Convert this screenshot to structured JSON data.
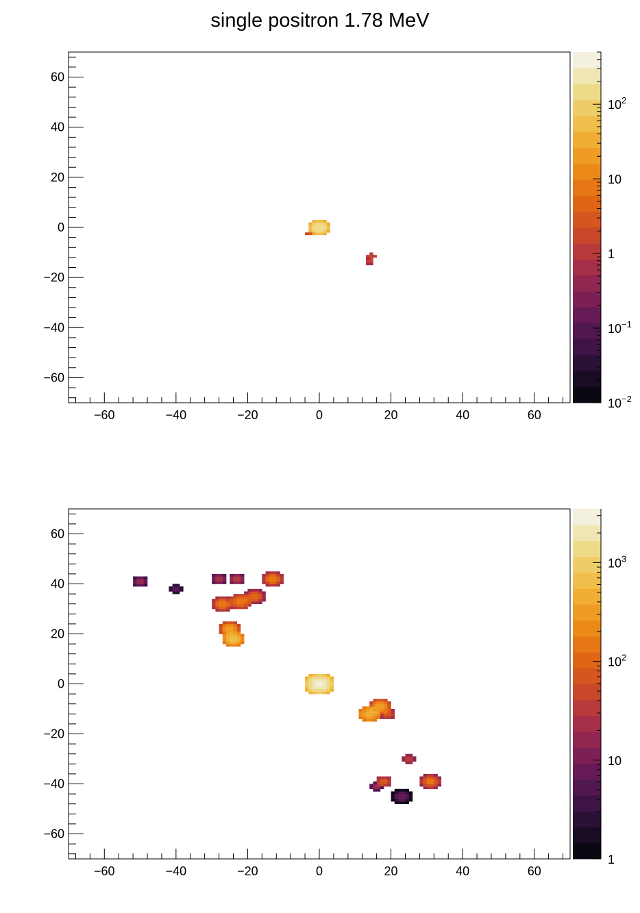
{
  "title": "single positron 1.78 MeV",
  "colors": {
    "palette": [
      "#0b0713",
      "#1a0c24",
      "#2b1135",
      "#3d1444",
      "#511750",
      "#661a55",
      "#7c1f55",
      "#912751",
      "#a52f48",
      "#b93a3b",
      "#c9472b",
      "#d6561f",
      "#e06616",
      "#e77714",
      "#ec8a19",
      "#ef9c25",
      "#f0ae35",
      "#f0bf4b",
      "#efcd66",
      "#eddb89",
      "#efe6b4",
      "#f3f0e0"
    ]
  },
  "chart_data": [
    {
      "type": "heatmap",
      "title": "",
      "xlabel": "",
      "ylabel": "",
      "xlim": [
        -70,
        70
      ],
      "ylim": [
        -70,
        70
      ],
      "x_ticks": [
        "−60",
        "−40",
        "−20",
        "0",
        "20",
        "40",
        "60"
      ],
      "y_ticks": [
        "60",
        "40",
        "20",
        "0",
        "−20",
        "−40",
        "−60"
      ],
      "z_scale": "log",
      "z_range": [
        0.01,
        500
      ],
      "colorbar_labels": [
        {
          "base": "10",
          "exp": "2",
          "value": 100
        },
        {
          "base": "10",
          "exp": "",
          "value": 10
        },
        {
          "base": "1",
          "exp": "",
          "value": 1
        },
        {
          "base": "10",
          "exp": "−1",
          "value": 0.1
        },
        {
          "base": "10",
          "exp": "−2",
          "value": 0.01
        }
      ],
      "clusters": [
        {
          "x": 0,
          "y": 0,
          "peak": 200,
          "sigma": 1.6,
          "radius": 3.5
        },
        {
          "x": -2.5,
          "y": -2.2,
          "peak": 3,
          "sigma": 0.9,
          "radius": 1.2
        },
        {
          "x": 14.5,
          "y": -11.5,
          "peak": 2,
          "sigma": 0.8,
          "radius": 1.2
        },
        {
          "x": 14,
          "y": -13.5,
          "peak": 2,
          "sigma": 0.8,
          "radius": 1.2
        }
      ]
    },
    {
      "type": "heatmap",
      "title": "",
      "xlabel": "",
      "ylabel": "",
      "xlim": [
        -70,
        70
      ],
      "ylim": [
        -70,
        70
      ],
      "x_ticks": [
        "−60",
        "−40",
        "−20",
        "0",
        "20",
        "40",
        "60"
      ],
      "y_ticks": [
        "60",
        "40",
        "20",
        "0",
        "−20",
        "−40",
        "−60"
      ],
      "z_scale": "log",
      "z_range": [
        1,
        3500
      ],
      "colorbar_labels": [
        {
          "base": "10",
          "exp": "3",
          "value": 1000
        },
        {
          "base": "10",
          "exp": "2",
          "value": 100
        },
        {
          "base": "10",
          "exp": "",
          "value": 10
        },
        {
          "base": "1",
          "exp": "",
          "value": 1
        }
      ],
      "clusters": [
        {
          "x": 0,
          "y": 0,
          "peak": 3000,
          "sigma": 2.2,
          "radius": 4.5
        },
        {
          "x": 14,
          "y": -12,
          "peak": 500,
          "sigma": 1.8,
          "radius": 3.5
        },
        {
          "x": 17,
          "y": -9,
          "peak": 300,
          "sigma": 1.6,
          "radius": 3.0
        },
        {
          "x": 19,
          "y": -12,
          "peak": 80,
          "sigma": 1.3,
          "radius": 2.5
        },
        {
          "x": -24,
          "y": 18,
          "peak": 600,
          "sigma": 1.8,
          "radius": 3.5
        },
        {
          "x": -25,
          "y": 22,
          "peak": 300,
          "sigma": 1.6,
          "radius": 3.0
        },
        {
          "x": -27,
          "y": 32,
          "peak": 150,
          "sigma": 1.5,
          "radius": 3.0
        },
        {
          "x": -22,
          "y": 33,
          "peak": 200,
          "sigma": 1.5,
          "radius": 3.0
        },
        {
          "x": -18,
          "y": 35,
          "peak": 120,
          "sigma": 1.4,
          "radius": 3.0
        },
        {
          "x": -13,
          "y": 42,
          "peak": 150,
          "sigma": 1.5,
          "radius": 3.0
        },
        {
          "x": -23,
          "y": 42,
          "peak": 40,
          "sigma": 1.2,
          "radius": 2.5
        },
        {
          "x": -28,
          "y": 42,
          "peak": 30,
          "sigma": 1.2,
          "radius": 2.5
        },
        {
          "x": -50,
          "y": 41,
          "peak": 20,
          "sigma": 1.2,
          "radius": 2.5
        },
        {
          "x": -40,
          "y": 38,
          "peak": 8,
          "sigma": 1.0,
          "radius": 2.0
        },
        {
          "x": 18,
          "y": -39,
          "peak": 80,
          "sigma": 1.3,
          "radius": 2.5
        },
        {
          "x": 31,
          "y": -39,
          "peak": 150,
          "sigma": 1.4,
          "radius": 3.0
        },
        {
          "x": 25,
          "y": -30,
          "peak": 40,
          "sigma": 1.1,
          "radius": 2.0
        },
        {
          "x": 16,
          "y": -41,
          "peak": 20,
          "sigma": 1.0,
          "radius": 2.0
        },
        {
          "x": 23,
          "y": -45,
          "peak": 8,
          "sigma": 1.5,
          "radius": 3.0
        }
      ]
    }
  ]
}
